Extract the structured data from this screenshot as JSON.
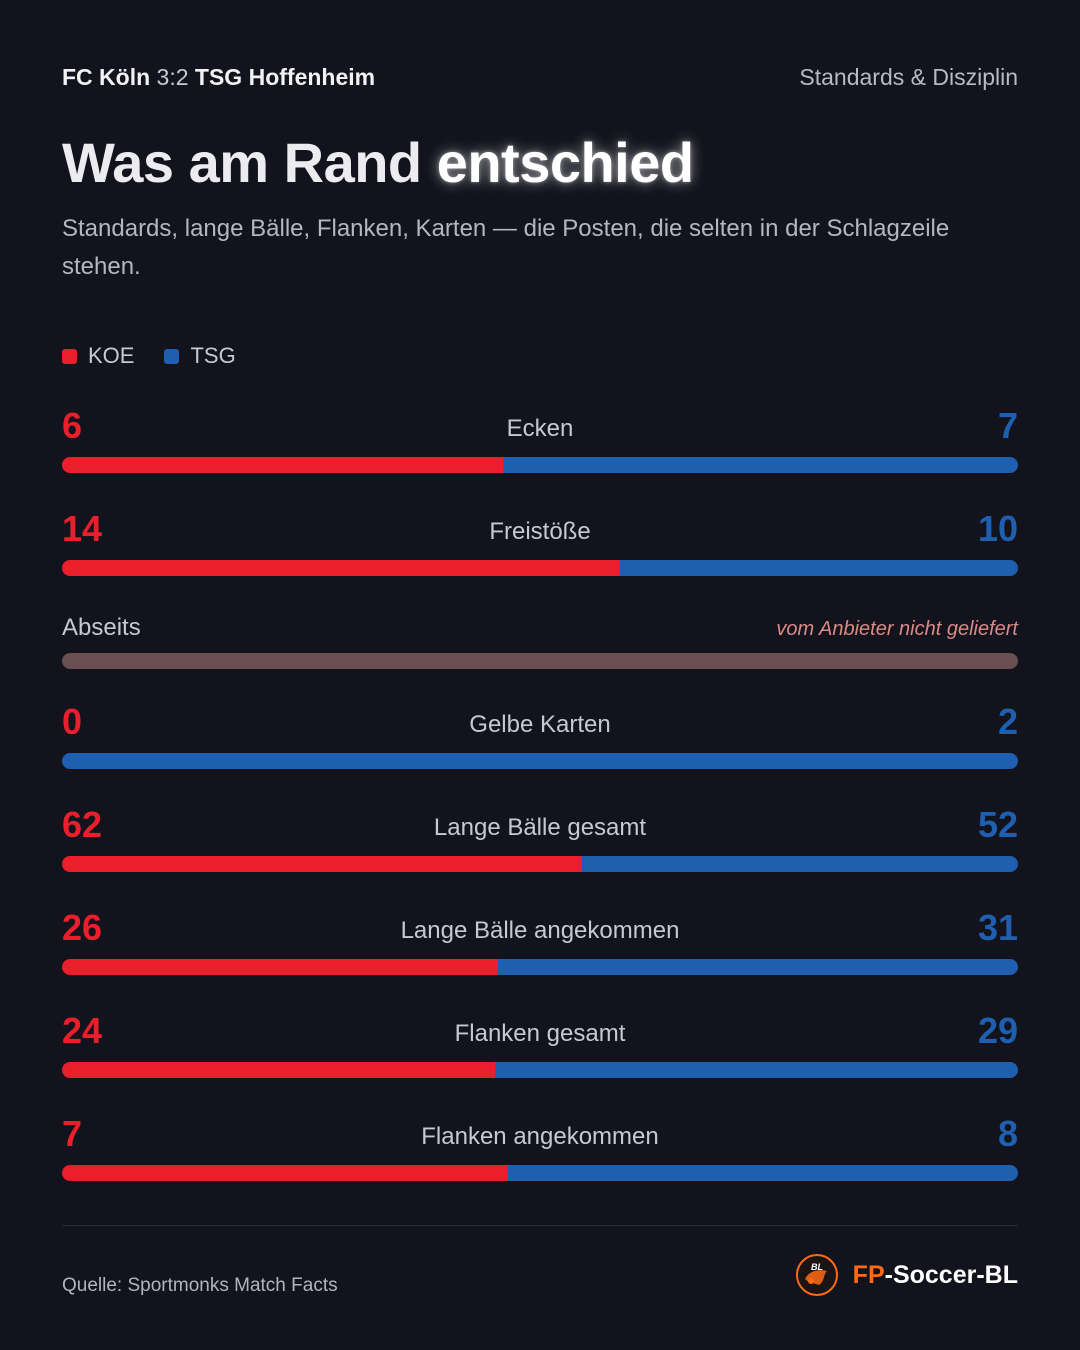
{
  "header": {
    "home_team": "FC Köln",
    "score": "3:2",
    "away_team": "TSG Hoffenheim",
    "section": "Standards & Disziplin"
  },
  "title": {
    "part1": "Was am Rand",
    "part2": "entschied"
  },
  "subtitle": "Standards, lange Bälle, Flanken, Karten — die Posten, die selten in der Schlagzeile stehen.",
  "colors": {
    "home": "#ea1f2b",
    "away": "#1f5fb0",
    "missing_bar": "#6a4f51",
    "missing_note": "#d98a86"
  },
  "chart_data": {
    "type": "bar",
    "series": [
      {
        "name": "KOE",
        "color": "#ea1f2b"
      },
      {
        "name": "TSG",
        "color": "#1f5fb0"
      }
    ],
    "rows": [
      {
        "label": "Ecken",
        "home": 6,
        "away": 7
      },
      {
        "label": "Freistöße",
        "home": 14,
        "away": 10
      },
      {
        "label": "Abseits",
        "home": null,
        "away": null,
        "note": "vom Anbieter nicht geliefert"
      },
      {
        "label": "Gelbe Karten",
        "home": 0,
        "away": 2
      },
      {
        "label": "Lange Bälle gesamt",
        "home": 62,
        "away": 52
      },
      {
        "label": "Lange Bälle angekommen",
        "home": 26,
        "away": 31
      },
      {
        "label": "Flanken gesamt",
        "home": 24,
        "away": 29
      },
      {
        "label": "Flanken angekommen",
        "home": 7,
        "away": 8
      }
    ],
    "legend_position": "top-left"
  },
  "footer": {
    "source": "Quelle: Sportmonks Match Facts",
    "brand_fp": "FP",
    "brand_rest": "-Soccer-BL",
    "logo_text": "BL"
  }
}
